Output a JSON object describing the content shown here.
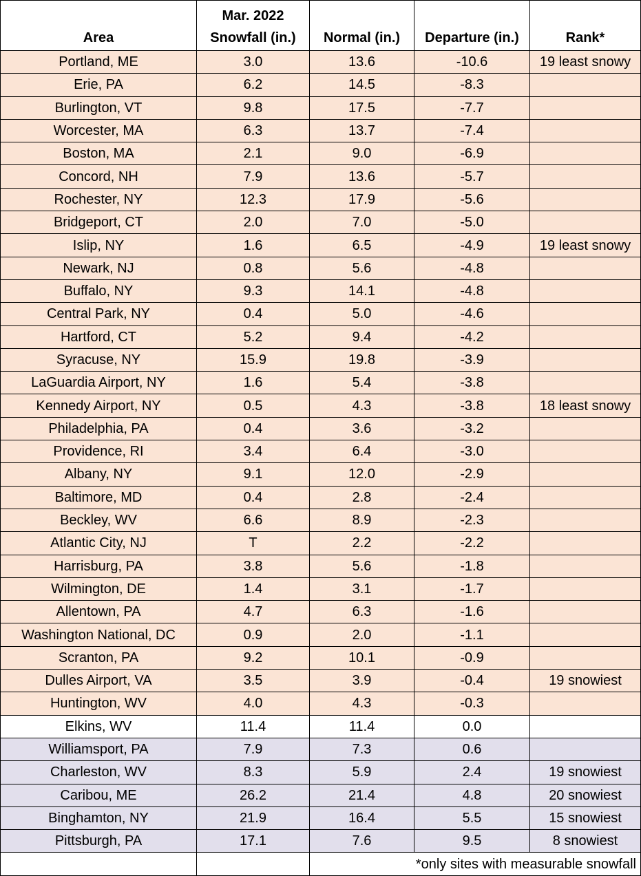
{
  "table": {
    "header": [
      "Area",
      "Mar. 2022\nSnowfall (in.)",
      "Normal (in.)",
      "Departure (in.)",
      "Rank*"
    ],
    "rows": [
      [
        "Portland, ME",
        "3.0",
        "13.6",
        "-10.6",
        "19 least snowy"
      ],
      [
        "Erie, PA",
        "6.2",
        "14.5",
        "-8.3",
        null
      ],
      [
        "Burlington, VT",
        "9.8",
        "17.5",
        "-7.7",
        null
      ],
      [
        "Worcester, MA",
        "6.3",
        "13.7",
        "-7.4",
        null
      ],
      [
        "Boston, MA",
        "2.1",
        "9.0",
        "-6.9",
        null
      ],
      [
        "Concord, NH",
        "7.9",
        "13.6",
        "-5.7",
        null
      ],
      [
        "Rochester, NY",
        "12.3",
        "17.9",
        "-5.6",
        null
      ],
      [
        "Bridgeport, CT",
        "2.0",
        "7.0",
        "-5.0",
        null
      ],
      [
        "Islip, NY",
        "1.6",
        "6.5",
        "-4.9",
        "19 least snowy"
      ],
      [
        "Newark, NJ",
        "0.8",
        "5.6",
        "-4.8",
        null
      ],
      [
        "Buffalo, NY",
        "9.3",
        "14.1",
        "-4.8",
        null
      ],
      [
        "Central Park, NY",
        "0.4",
        "5.0",
        "-4.6",
        null
      ],
      [
        "Hartford, CT",
        "5.2",
        "9.4",
        "-4.2",
        null
      ],
      [
        "Syracuse, NY",
        "15.9",
        "19.8",
        "-3.9",
        null
      ],
      [
        "LaGuardia Airport, NY",
        "1.6",
        "5.4",
        "-3.8",
        null
      ],
      [
        "Kennedy Airport, NY",
        "0.5",
        "4.3",
        "-3.8",
        "18 least snowy"
      ],
      [
        "Philadelphia, PA",
        "0.4",
        "3.6",
        "-3.2",
        null
      ],
      [
        "Providence, RI",
        "3.4",
        "6.4",
        "-3.0",
        null
      ],
      [
        "Albany, NY",
        "9.1",
        "12.0",
        "-2.9",
        null
      ],
      [
        "Baltimore, MD",
        "0.4",
        "2.8",
        "-2.4",
        null
      ],
      [
        "Beckley, WV",
        "6.6",
        "8.9",
        "-2.3",
        null
      ],
      [
        "Atlantic City, NJ",
        "T",
        "2.2",
        "-2.2",
        null
      ],
      [
        "Harrisburg, PA",
        "3.8",
        "5.6",
        "-1.8",
        null
      ],
      [
        "Wilmington, DE",
        "1.4",
        "3.1",
        "-1.7",
        null
      ],
      [
        "Allentown, PA",
        "4.7",
        "6.3",
        "-1.6",
        null
      ],
      [
        "Washington National, DC",
        "0.9",
        "2.0",
        "-1.1",
        null
      ],
      [
        "Scranton, PA",
        "9.2",
        "10.1",
        "-0.9",
        null
      ],
      [
        "Dulles Airport, VA",
        "3.5",
        "3.9",
        "-0.4",
        "19 snowiest"
      ],
      [
        "Huntington, WV",
        "4.0",
        "4.3",
        "-0.3",
        null
      ],
      [
        "Elkins, WV",
        "11.4",
        "11.4",
        "0.0",
        null
      ],
      [
        "Williamsport, PA",
        "7.9",
        "7.3",
        "0.6",
        null
      ],
      [
        "Charleston, WV",
        "8.3",
        "5.9",
        "2.4",
        "19 snowiest"
      ],
      [
        "Caribou, ME",
        "26.2",
        "21.4",
        "4.8",
        "20 snowiest"
      ],
      [
        "Binghamton, NY",
        "21.9",
        "16.4",
        "5.5",
        "15 snowiest"
      ],
      [
        "Pittsburgh, PA",
        "17.1",
        "7.6",
        "9.5",
        "8 snowiest"
      ]
    ],
    "footnote": "*only sites with measurable snowfall"
  }
}
